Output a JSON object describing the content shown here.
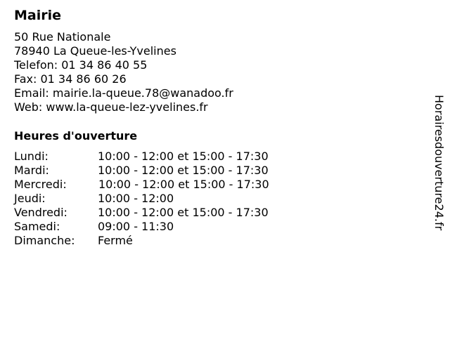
{
  "title": "Mairie",
  "address": [
    "50 Rue Nationale",
    "78940 La Queue-les-Yvelines",
    "Telefon: 01 34 86 40 55",
    "Fax: 01 34 86 60 26",
    "Email: mairie.la-queue.78@wanadoo.fr",
    "Web: www.la-queue-lez-yvelines.fr"
  ],
  "hours_heading": "Heures d'ouverture",
  "hours": [
    {
      "day": "Lundi:",
      "time": "10:00 - 12:00 et 15:00 - 17:30"
    },
    {
      "day": "Mardi:",
      "time": "10:00 - 12:00 et 15:00 - 17:30"
    },
    {
      "day": "Mercredi:",
      "time": "10:00 - 12:00 et 15:00 - 17:30"
    },
    {
      "day": "Jeudi:",
      "time": "10:00 - 12:00"
    },
    {
      "day": "Vendredi:",
      "time": "10:00 - 12:00 et 15:00 - 17:30"
    },
    {
      "day": "Samedi:",
      "time": "09:00 - 11:30"
    },
    {
      "day": "Dimanche:",
      "time": "Fermé"
    }
  ],
  "watermark": "Horairesdouverture24.fr"
}
